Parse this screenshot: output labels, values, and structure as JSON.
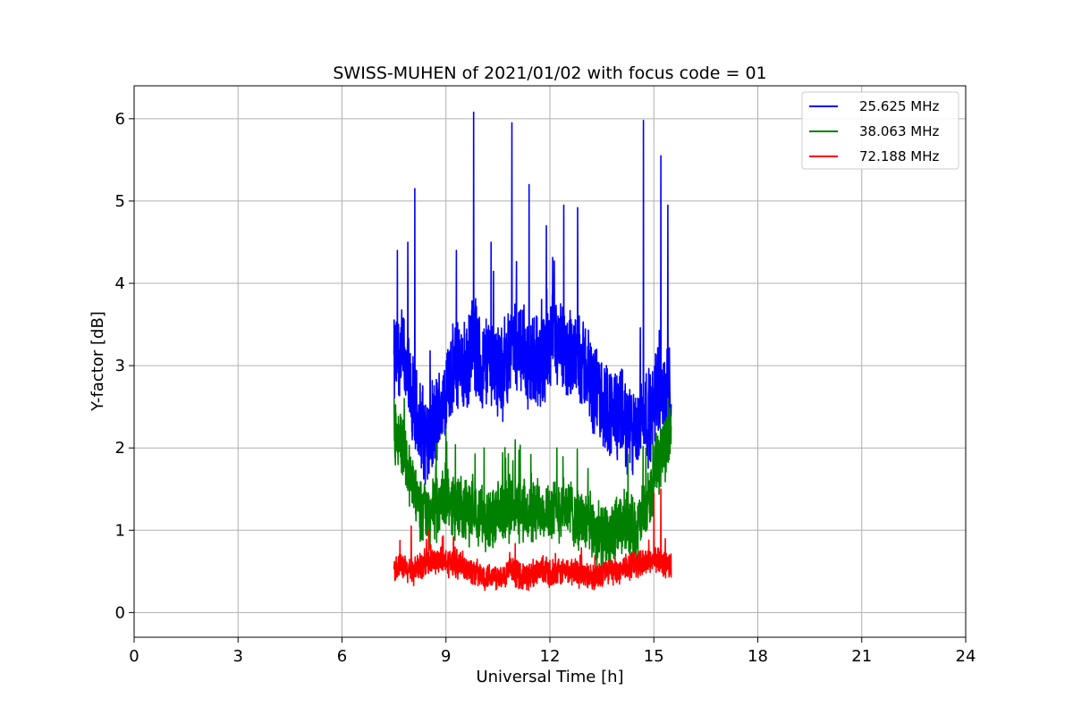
{
  "chart_data": {
    "type": "line",
    "title": "SWISS-MUHEN of 2021/01/02 with focus code = 01",
    "xlabel": "Universal Time [h]",
    "ylabel": "Y-factor [dB]",
    "xlim": [
      0,
      24
    ],
    "ylim": [
      -0.3,
      6.4
    ],
    "xticks": [
      0,
      3,
      6,
      9,
      12,
      15,
      18,
      21,
      24
    ],
    "yticks": [
      0,
      1,
      2,
      3,
      4,
      5,
      6
    ],
    "grid": true,
    "legend_position": "top-right",
    "series": [
      {
        "name": "25.625 MHz",
        "color": "#0000ff",
        "x": [
          7.5,
          7.7,
          8.0,
          8.2,
          8.5,
          8.8,
          9.0,
          9.3,
          9.6,
          9.8,
          10.0,
          10.3,
          10.6,
          10.9,
          11.2,
          11.5,
          11.8,
          12.1,
          12.4,
          12.7,
          13.0,
          13.3,
          13.6,
          13.9,
          14.2,
          14.5,
          14.7,
          14.9,
          15.1,
          15.3,
          15.5
        ],
        "values": [
          3.0,
          3.2,
          2.6,
          2.3,
          2.1,
          2.4,
          2.7,
          3.0,
          2.9,
          3.3,
          3.0,
          3.1,
          2.9,
          3.3,
          3.2,
          3.0,
          3.1,
          3.3,
          3.1,
          3.2,
          3.0,
          2.7,
          2.5,
          2.4,
          2.3,
          2.1,
          2.5,
          2.3,
          2.8,
          2.6,
          2.5
        ],
        "peaks": [
          {
            "x": 7.6,
            "y": 4.4
          },
          {
            "x": 7.9,
            "y": 4.5
          },
          {
            "x": 8.1,
            "y": 5.15
          },
          {
            "x": 9.3,
            "y": 4.4
          },
          {
            "x": 9.8,
            "y": 6.08
          },
          {
            "x": 10.3,
            "y": 4.5
          },
          {
            "x": 10.9,
            "y": 5.95
          },
          {
            "x": 11.4,
            "y": 5.2
          },
          {
            "x": 11.9,
            "y": 4.7
          },
          {
            "x": 12.4,
            "y": 4.95
          },
          {
            "x": 12.8,
            "y": 4.92
          },
          {
            "x": 14.7,
            "y": 5.98
          },
          {
            "x": 15.2,
            "y": 5.55
          },
          {
            "x": 15.4,
            "y": 4.95
          }
        ]
      },
      {
        "name": "38.063 MHz",
        "color": "#008000",
        "x": [
          7.5,
          7.7,
          8.0,
          8.2,
          8.5,
          8.8,
          9.0,
          9.3,
          9.6,
          9.8,
          10.0,
          10.3,
          10.6,
          10.9,
          11.2,
          11.5,
          11.8,
          12.1,
          12.4,
          12.7,
          13.0,
          13.3,
          13.6,
          13.9,
          14.2,
          14.5,
          14.7,
          14.9,
          15.1,
          15.3,
          15.5
        ],
        "values": [
          2.2,
          2.1,
          1.6,
          1.3,
          1.2,
          1.3,
          1.4,
          1.3,
          1.2,
          1.3,
          1.2,
          1.1,
          1.2,
          1.3,
          1.2,
          1.2,
          1.3,
          1.2,
          1.3,
          1.2,
          1.1,
          1.0,
          0.9,
          1.0,
          1.1,
          1.0,
          1.2,
          1.4,
          1.8,
          2.0,
          2.2
        ],
        "peaks": [
          {
            "x": 7.5,
            "y": 2.6
          },
          {
            "x": 7.8,
            "y": 2.6
          },
          {
            "x": 10.1,
            "y": 2.0
          },
          {
            "x": 11.0,
            "y": 2.1
          },
          {
            "x": 12.2,
            "y": 2.0
          },
          {
            "x": 15.4,
            "y": 2.6
          }
        ]
      },
      {
        "name": "72.188 MHz",
        "color": "#ff0000",
        "x": [
          7.5,
          7.7,
          8.0,
          8.2,
          8.5,
          8.8,
          9.0,
          9.3,
          9.6,
          9.8,
          10.0,
          10.3,
          10.6,
          10.9,
          11.2,
          11.5,
          11.8,
          12.1,
          12.4,
          12.7,
          13.0,
          13.3,
          13.6,
          13.9,
          14.2,
          14.5,
          14.7,
          14.9,
          15.1,
          15.3,
          15.5
        ],
        "values": [
          0.55,
          0.55,
          0.5,
          0.55,
          0.6,
          0.65,
          0.6,
          0.6,
          0.55,
          0.5,
          0.45,
          0.45,
          0.45,
          0.5,
          0.45,
          0.45,
          0.5,
          0.45,
          0.5,
          0.5,
          0.45,
          0.45,
          0.5,
          0.5,
          0.55,
          0.6,
          0.6,
          0.65,
          0.65,
          0.6,
          0.55
        ],
        "peaks": [
          {
            "x": 8.0,
            "y": 1.05
          },
          {
            "x": 8.5,
            "y": 1.0
          },
          {
            "x": 15.0,
            "y": 1.45
          },
          {
            "x": 15.2,
            "y": 1.5
          }
        ]
      }
    ]
  }
}
